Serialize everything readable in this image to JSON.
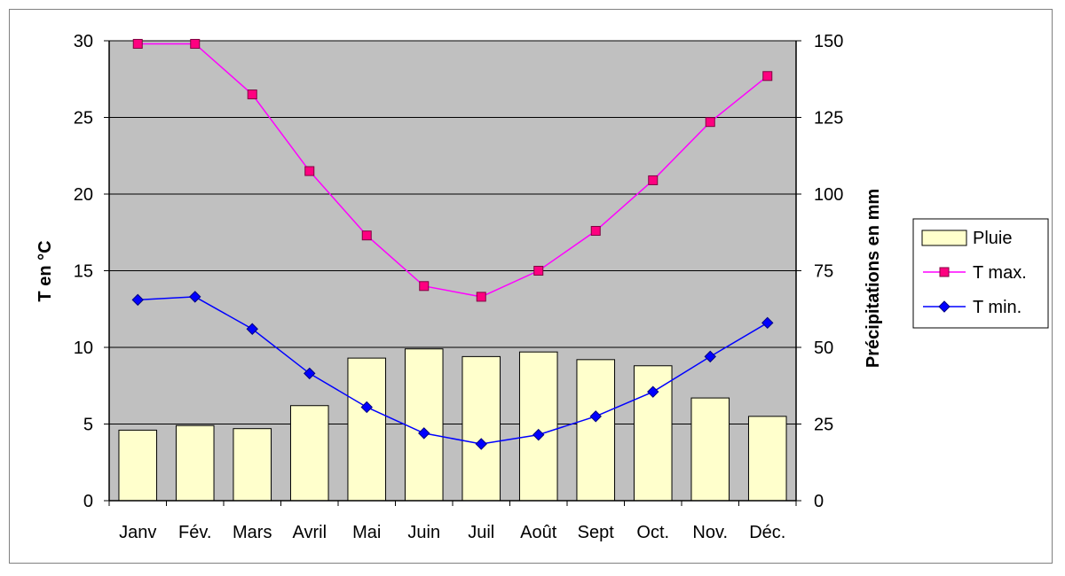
{
  "chart_data": {
    "type": "bar",
    "categories": [
      "Janv",
      "Fév.",
      "Mars",
      "Avril",
      "Mai",
      "Juin",
      "Juil",
      "Août",
      "Sept",
      "Oct.",
      "Nov.",
      "Déc."
    ],
    "ylabel": "T en °C",
    "y2label": "Précipitations en mm",
    "ylim": [
      0,
      30
    ],
    "yticks": [
      "0",
      "5",
      "10",
      "15",
      "20",
      "25",
      "30"
    ],
    "y2lim": [
      0,
      150
    ],
    "y2ticks": [
      "0",
      "25",
      "50",
      "75",
      "100",
      "125",
      "150"
    ],
    "grid": true,
    "legend_position": "right",
    "series": [
      {
        "name": "Pluie",
        "type": "bar",
        "axis": "right",
        "color": "#FFFFCC",
        "values": [
          23,
          24.5,
          23.5,
          31,
          46.5,
          49.5,
          47,
          48.5,
          46,
          44,
          33.5,
          27.5
        ]
      },
      {
        "name": "T max.",
        "type": "line",
        "axis": "left",
        "color": "#FF00FF",
        "marker": "square",
        "values": [
          29.8,
          29.8,
          26.5,
          21.5,
          17.3,
          14,
          13.3,
          15,
          17.6,
          20.9,
          24.7,
          27.7
        ]
      },
      {
        "name": "T min.",
        "type": "line",
        "axis": "left",
        "color": "#0000FF",
        "marker": "diamond",
        "values": [
          13.1,
          13.3,
          11.2,
          8.3,
          6.1,
          4.4,
          3.7,
          4.3,
          5.5,
          7.1,
          9.4,
          11.6
        ]
      }
    ]
  }
}
